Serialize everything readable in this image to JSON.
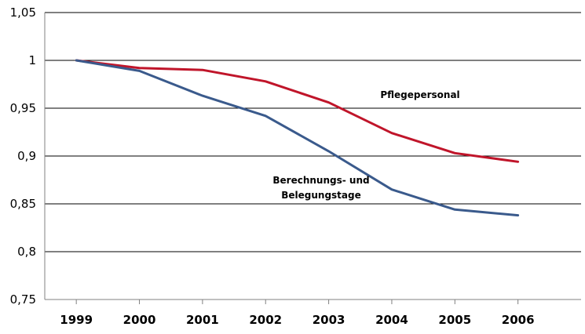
{
  "chart_data": {
    "type": "line",
    "title": "",
    "xlabel": "",
    "ylabel": "",
    "x": [
      "1999",
      "2000",
      "2001",
      "2002",
      "2003",
      "2004",
      "2005",
      "2006"
    ],
    "ylim": [
      0.75,
      1.05
    ],
    "yticks": [
      0.75,
      0.8,
      0.85,
      0.9,
      0.95,
      1,
      1.05
    ],
    "ytick_labels": [
      "0,75",
      "0,8",
      "0,85",
      "0,9",
      "0,95",
      "1",
      "1,05"
    ],
    "grid": true,
    "legend": "none",
    "series": [
      {
        "name": "Pflegepersonal",
        "color": "#c0152a",
        "values": [
          1.0,
          0.992,
          0.99,
          0.978,
          0.956,
          0.924,
          0.903,
          0.894
        ]
      },
      {
        "name": "Berechnungs- und Belegungstage",
        "color": "#3a5a8c",
        "values": [
          1.0,
          0.989,
          0.963,
          0.942,
          0.905,
          0.865,
          0.844,
          0.838
        ]
      }
    ],
    "annotations": [
      {
        "text": "Pflegepersonal",
        "series": 0
      },
      {
        "lines": [
          "Berechnungs- und",
          "Belegungstage"
        ],
        "series": 1
      }
    ]
  }
}
